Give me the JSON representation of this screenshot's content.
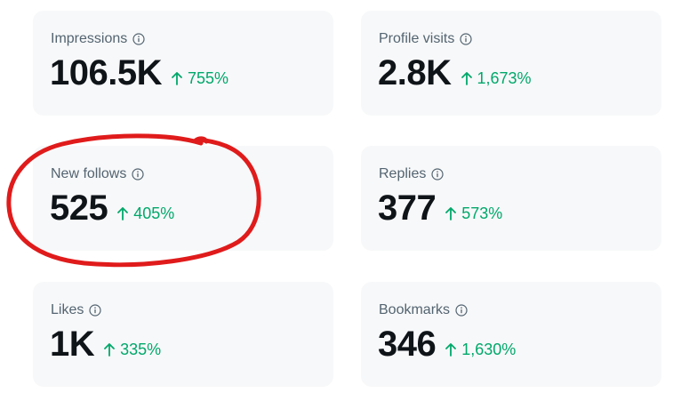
{
  "colors": {
    "card_bg": "#f7f8f9",
    "label": "#536471",
    "value": "#0f1419",
    "delta": "#00a86b",
    "annotation": "#e01b1b"
  },
  "icons": {
    "info": "info-icon",
    "delta": "arrow-up-icon"
  },
  "metrics": [
    {
      "label": "Impressions",
      "value": "106.5K",
      "delta": "755%"
    },
    {
      "label": "Profile visits",
      "value": "2.8K",
      "delta": "1,673%"
    },
    {
      "label": "New follows",
      "value": "525",
      "delta": "405%"
    },
    {
      "label": "Replies",
      "value": "377",
      "delta": "573%"
    },
    {
      "label": "Likes",
      "value": "1K",
      "delta": "335%"
    },
    {
      "label": "Bookmarks",
      "value": "346",
      "delta": "1,630%"
    }
  ]
}
